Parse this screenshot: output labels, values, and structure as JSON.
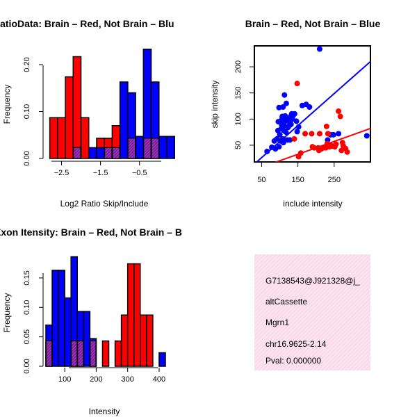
{
  "chart_data": [
    {
      "type": "bar",
      "panel": "top-left",
      "title": "RatioData: Brain – Red, Not Brain – Blu",
      "xlabel": "Log2 Ratio Skip/Include",
      "ylabel": "Frequency",
      "bin_width": 0.2,
      "xlim": [
        -2.9,
        0.2
      ],
      "ylim": [
        0,
        0.24
      ],
      "x_ticks": [
        -2.5,
        -1.5,
        -0.5
      ],
      "x_tick_labels": [
        "−2.5",
        "−1.5",
        "−0.5"
      ],
      "y_ticks": [
        0.0,
        0.1,
        0.2
      ],
      "y_tick_labels": [
        "0.00",
        "0.10",
        "0.20"
      ],
      "series": [
        {
          "name": "Brain",
          "color": "#ff0000",
          "bins": [
            [
              -2.8,
              0.087
            ],
            [
              -2.6,
              0.087
            ],
            [
              -2.4,
              0.174
            ],
            [
              -2.2,
              0.217
            ],
            [
              -2.0,
              0.087
            ],
            [
              -1.6,
              0.043
            ],
            [
              -1.4,
              0.043
            ],
            [
              -1.2,
              0.07
            ],
            [
              -0.8,
              0.043
            ],
            [
              -0.6,
              0.043
            ],
            [
              -0.4,
              0.043
            ],
            [
              -0.2,
              0.043
            ]
          ]
        },
        {
          "name": "Not Brain",
          "color": "#0000ff",
          "bins": [
            [
              -2.2,
              0.023
            ],
            [
              -1.8,
              0.023
            ],
            [
              -1.6,
              0.023
            ],
            [
              -1.4,
              0.023
            ],
            [
              -1.2,
              0.023
            ],
            [
              -1.0,
              0.163
            ],
            [
              -0.8,
              0.14
            ],
            [
              -0.6,
              0.047
            ],
            [
              -0.4,
              0.233
            ],
            [
              -0.2,
              0.163
            ],
            [
              0.0,
              0.047
            ],
            [
              0.2,
              0.047
            ]
          ]
        }
      ],
      "overlap_bins": [
        [
          -2.2,
          0.023
        ],
        [
          -1.4,
          0.023
        ],
        [
          -1.2,
          0.023
        ],
        [
          -0.8,
          0.043
        ],
        [
          -0.4,
          0.043
        ],
        [
          -0.2,
          0.043
        ]
      ]
    },
    {
      "type": "scatter",
      "panel": "top-right",
      "title": "Brain – Red, Not Brain – Blue",
      "xlabel": "include intensity",
      "ylabel": "skip intensity",
      "xlim": [
        30,
        350
      ],
      "ylim": [
        18,
        240
      ],
      "x_ticks": [
        50,
        150,
        250
      ],
      "x_tick_labels": [
        "50",
        "150",
        "250"
      ],
      "y_ticks": [
        50,
        100,
        150,
        200
      ],
      "y_tick_labels": [
        "50",
        "100",
        "150",
        "200"
      ],
      "series": [
        {
          "name": "Not Brain",
          "color": "#0000ff",
          "points": [
            [
              65,
              38
            ],
            [
              78,
              46
            ],
            [
              85,
              58
            ],
            [
              88,
              43
            ],
            [
              92,
              62
            ],
            [
              95,
              78
            ],
            [
              96,
              95
            ],
            [
              98,
              47
            ],
            [
              98,
              122
            ],
            [
              100,
              70
            ],
            [
              102,
              58
            ],
            [
              104,
              82
            ],
            [
              105,
              90
            ],
            [
              106,
              100
            ],
            [
              107,
              105
            ],
            [
              108,
              62
            ],
            [
              109,
              123
            ],
            [
              110,
              55
            ],
            [
              111,
              78
            ],
            [
              112,
              88
            ],
            [
              113,
              146
            ],
            [
              114,
              95
            ],
            [
              115,
              106
            ],
            [
              117,
              75
            ],
            [
              118,
              100
            ],
            [
              118,
              130
            ],
            [
              121,
              60
            ],
            [
              123,
              84
            ],
            [
              125,
              96
            ],
            [
              127,
              88
            ],
            [
              128,
              60
            ],
            [
              130,
              105
            ],
            [
              131,
              90
            ],
            [
              133,
              110
            ],
            [
              135,
              100
            ],
            [
              137,
              107
            ],
            [
              141,
              110
            ],
            [
              146,
              96
            ],
            [
              148,
              76
            ],
            [
              152,
              85
            ],
            [
              162,
              126
            ],
            [
              173,
              128
            ],
            [
              182,
              123
            ],
            [
              210,
              234
            ],
            [
              232,
              60
            ],
            [
              240,
              70
            ],
            [
              248,
              70
            ],
            [
              262,
              72
            ],
            [
              340,
              68
            ]
          ],
          "fit": [
            [
              30,
              14
            ],
            [
              350,
              210
            ]
          ]
        },
        {
          "name": "Brain",
          "color": "#ff0000",
          "points": [
            [
              140,
              62
            ],
            [
              148,
              168
            ],
            [
              152,
              28
            ],
            [
              158,
              35
            ],
            [
              170,
              72
            ],
            [
              188,
              72
            ],
            [
              190,
              47
            ],
            [
              195,
              45
            ],
            [
              206,
              45
            ],
            [
              208,
              40
            ],
            [
              210,
              72
            ],
            [
              213,
              44
            ],
            [
              215,
              43
            ],
            [
              220,
              45
            ],
            [
              223,
              46
            ],
            [
              227,
              45
            ],
            [
              229,
              86
            ],
            [
              231,
              53
            ],
            [
              233,
              72
            ],
            [
              237,
              47
            ],
            [
              240,
              50
            ],
            [
              245,
              48
            ],
            [
              252,
              47
            ],
            [
              255,
              52
            ],
            [
              262,
              115
            ],
            [
              267,
              105
            ],
            [
              270,
              40
            ],
            [
              273,
              55
            ],
            [
              275,
              49
            ],
            [
              281,
              44
            ],
            [
              286,
              37
            ]
          ],
          "fit": [
            [
              30,
              3
            ],
            [
              350,
              82
            ]
          ]
        }
      ]
    },
    {
      "type": "bar",
      "panel": "bottom-left",
      "title": "Exon Itensity: Brain – Red, Not Brain – B",
      "xlabel": "Intensity",
      "ylabel": "Frequency",
      "bin_width": 20,
      "xlim": [
        40,
        420
      ],
      "ylim": [
        0,
        0.19
      ],
      "x_ticks": [
        100,
        200,
        300,
        400
      ],
      "x_tick_labels": [
        "100",
        "200",
        "300",
        "400"
      ],
      "y_ticks": [
        0.0,
        0.05,
        0.1,
        0.15
      ],
      "y_tick_labels": [
        "0.00",
        "0.05",
        "0.10",
        "0.15"
      ],
      "series": [
        {
          "name": "Not Brain",
          "color": "#0000ff",
          "bins": [
            [
              40,
              0.07
            ],
            [
              60,
              0.163
            ],
            [
              80,
              0.163
            ],
            [
              100,
              0.116
            ],
            [
              120,
              0.186
            ],
            [
              140,
              0.093
            ],
            [
              160,
              0.093
            ],
            [
              180,
              0.047
            ],
            [
              400,
              0.023
            ]
          ]
        },
        {
          "name": "Brain",
          "color": "#ff0000",
          "bins": [
            [
              40,
              0.043
            ],
            [
              120,
              0.043
            ],
            [
              140,
              0.043
            ],
            [
              180,
              0.043
            ],
            [
              220,
              0.043
            ],
            [
              260,
              0.043
            ],
            [
              280,
              0.087
            ],
            [
              300,
              0.174
            ],
            [
              320,
              0.174
            ],
            [
              340,
              0.087
            ],
            [
              360,
              0.087
            ]
          ]
        }
      ],
      "overlap_bins": [
        [
          40,
          0.043
        ],
        [
          120,
          0.043
        ],
        [
          140,
          0.043
        ],
        [
          180,
          0.043
        ]
      ]
    }
  ],
  "info": {
    "id": "G7138543@J921328@j_",
    "type": "altCassette",
    "gene": "Mgrn1",
    "location": "chr16.9625-2.14",
    "pval": "Pval: 0.000000",
    "pval_color": "#8b0000",
    "bg_color": "#fbe2ee"
  }
}
